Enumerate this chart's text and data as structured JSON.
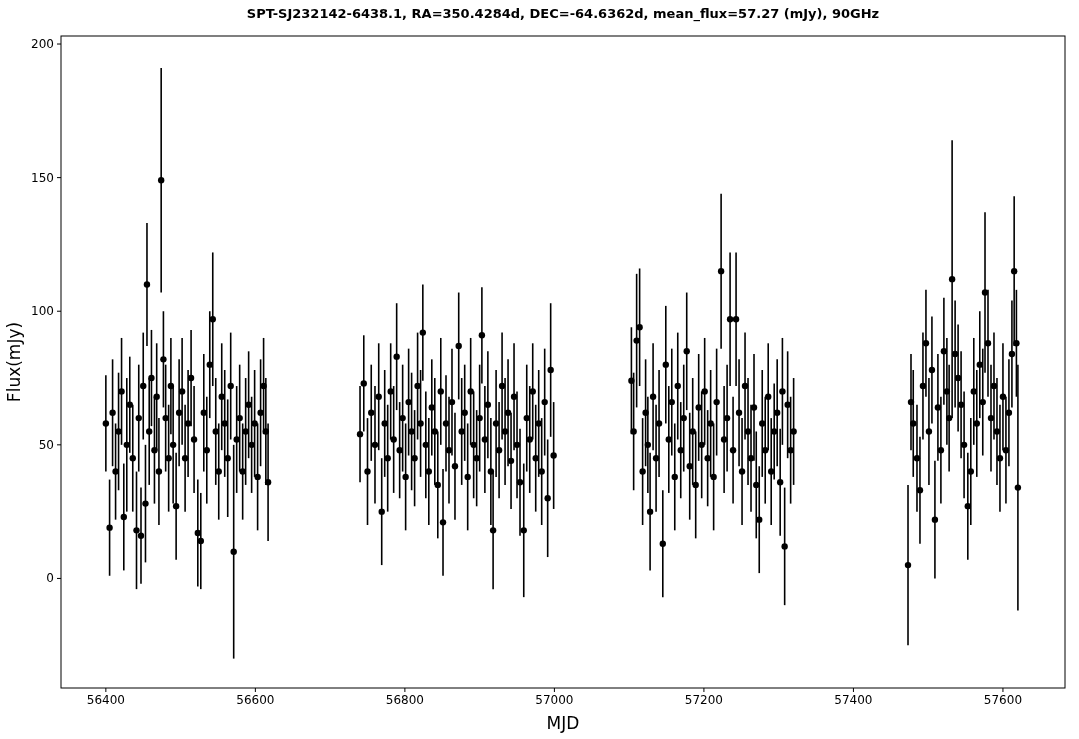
{
  "chart_data": {
    "type": "scatter",
    "title": "SPT-SJ232142-6438.1, RA=350.4284d, DEC=-64.6362d, mean_flux=57.27 (mJy), 90GHz",
    "xlabel": "MJD",
    "ylabel": "Flux(mJy)",
    "color": "#000000",
    "marker": "circle",
    "grid": false,
    "xlim": [
      56340,
      57683
    ],
    "ylim": [
      -41,
      203
    ],
    "xticks": [
      56400,
      56600,
      56800,
      57000,
      57200,
      57400,
      57600
    ],
    "yticks": [
      0,
      50,
      100,
      150,
      200
    ],
    "x": [
      56400,
      56405,
      56409,
      56413,
      56417,
      56421,
      56424,
      56428,
      56432,
      56436,
      56441,
      56444,
      56447,
      56450,
      56453,
      56455,
      56458,
      56461,
      56465,
      56468,
      56471,
      56474,
      56477,
      56480,
      56484,
      56487,
      56490,
      56494,
      56498,
      56502,
      56506,
      56510,
      56514,
      56518,
      56523,
      56527,
      56531,
      56535,
      56539,
      56543,
      56547,
      56551,
      56555,
      56559,
      56563,
      56567,
      56571,
      56575,
      56579,
      56583,
      56587,
      56591,
      56595,
      56599,
      56603,
      56607,
      56611,
      56614,
      56617,
      56740,
      56745,
      56750,
      56755,
      56760,
      56765,
      56769,
      56773,
      56777,
      56781,
      56785,
      56789,
      56793,
      56797,
      56801,
      56805,
      56809,
      56813,
      56817,
      56821,
      56824,
      56828,
      56832,
      56836,
      56840,
      56844,
      56848,
      56851,
      56855,
      56859,
      56863,
      56867,
      56872,
      56876,
      56880,
      56884,
      56888,
      56892,
      56896,
      56900,
      56903,
      56907,
      56911,
      56915,
      56918,
      56922,
      56926,
      56930,
      56934,
      56938,
      56942,
      56946,
      56950,
      56954,
      56959,
      56963,
      56967,
      56971,
      56975,
      56979,
      56983,
      56987,
      56991,
      56995,
      56999,
      57103,
      57106,
      57110,
      57114,
      57118,
      57122,
      57125,
      57128,
      57132,
      57136,
      57140,
      57145,
      57149,
      57153,
      57157,
      57161,
      57165,
      57169,
      57173,
      57177,
      57181,
      57185,
      57189,
      57193,
      57197,
      57201,
      57205,
      57209,
      57213,
      57217,
      57223,
      57227,
      57231,
      57235,
      57239,
      57243,
      57247,
      57251,
      57255,
      57259,
      57263,
      57267,
      57270,
      57274,
      57278,
      57282,
      57286,
      57290,
      57294,
      57298,
      57302,
      57305,
      57308,
      57312,
      57316,
      57320,
      57473,
      57477,
      57480,
      57485,
      57489,
      57493,
      57497,
      57501,
      57505,
      57509,
      57513,
      57517,
      57521,
      57525,
      57528,
      57532,
      57536,
      57540,
      57544,
      57548,
      57553,
      57557,
      57561,
      57565,
      57569,
      57573,
      57576,
      57580,
      57584,
      57588,
      57592,
      57596,
      57600,
      57604,
      57608,
      57612,
      57615,
      57618,
      57620
    ],
    "values": [
      58,
      19,
      62,
      40,
      55,
      70,
      23,
      50,
      65,
      45,
      18,
      60,
      16,
      72,
      28,
      110,
      55,
      75,
      48,
      68,
      40,
      149,
      82,
      60,
      45,
      72,
      50,
      27,
      62,
      70,
      45,
      58,
      75,
      52,
      17,
      14,
      62,
      48,
      80,
      97,
      55,
      40,
      68,
      58,
      45,
      72,
      10,
      52,
      60,
      40,
      55,
      65,
      50,
      58,
      38,
      62,
      72,
      55,
      36,
      54,
      73,
      40,
      62,
      50,
      68,
      25,
      58,
      45,
      70,
      52,
      83,
      48,
      60,
      38,
      66,
      55,
      45,
      72,
      58,
      92,
      50,
      40,
      64,
      55,
      35,
      70,
      21,
      58,
      48,
      66,
      42,
      87,
      55,
      62,
      38,
      70,
      50,
      45,
      60,
      91,
      52,
      65,
      40,
      18,
      58,
      48,
      72,
      55,
      62,
      44,
      68,
      50,
      36,
      18,
      60,
      52,
      70,
      45,
      58,
      40,
      66,
      30,
      78,
      46,
      74,
      55,
      89,
      94,
      40,
      62,
      50,
      25,
      68,
      45,
      58,
      13,
      80,
      52,
      66,
      38,
      72,
      48,
      60,
      85,
      42,
      55,
      35,
      64,
      50,
      70,
      45,
      58,
      38,
      66,
      115,
      52,
      60,
      97,
      48,
      97,
      62,
      40,
      72,
      55,
      45,
      64,
      35,
      22,
      58,
      48,
      68,
      40,
      55,
      62,
      36,
      70,
      12,
      65,
      48,
      55,
      5,
      66,
      58,
      45,
      33,
      72,
      88,
      55,
      78,
      22,
      64,
      48,
      85,
      70,
      60,
      112,
      84,
      75,
      65,
      50,
      27,
      40,
      70,
      58,
      80,
      66,
      107,
      88,
      60,
      72,
      55,
      45,
      68,
      48,
      62,
      84,
      115,
      88,
      34
    ],
    "errors": [
      18,
      18,
      20,
      18,
      22,
      20,
      20,
      25,
      18,
      20,
      22,
      20,
      18,
      20,
      22,
      23,
      20,
      18,
      20,
      20,
      20,
      42,
      18,
      20,
      20,
      18,
      22,
      20,
      20,
      20,
      20,
      20,
      18,
      20,
      20,
      18,
      22,
      20,
      20,
      25,
      20,
      18,
      20,
      20,
      22,
      20,
      40,
      20,
      20,
      18,
      20,
      20,
      18,
      20,
      20,
      20,
      18,
      20,
      22,
      18,
      18,
      20,
      18,
      22,
      20,
      20,
      20,
      20,
      18,
      20,
      20,
      18,
      20,
      20,
      20,
      22,
      18,
      20,
      20,
      18,
      20,
      20,
      18,
      20,
      20,
      20,
      20,
      18,
      20,
      20,
      20,
      20,
      20,
      18,
      20,
      20,
      20,
      18,
      20,
      18,
      20,
      20,
      20,
      22,
      20,
      18,
      20,
      20,
      20,
      18,
      20,
      20,
      20,
      25,
      20,
      20,
      18,
      20,
      20,
      20,
      20,
      22,
      25,
      20,
      20,
      22,
      25,
      22,
      20,
      20,
      18,
      22,
      20,
      20,
      20,
      20,
      22,
      20,
      20,
      20,
      20,
      18,
      20,
      22,
      20,
      20,
      20,
      20,
      20,
      20,
      18,
      20,
      20,
      20,
      29,
      20,
      20,
      25,
      20,
      25,
      20,
      20,
      20,
      20,
      20,
      20,
      20,
      20,
      20,
      20,
      20,
      20,
      18,
      20,
      20,
      20,
      22,
      20,
      20,
      20,
      30,
      18,
      20,
      20,
      20,
      20,
      20,
      20,
      20,
      22,
      20,
      20,
      20,
      20,
      20,
      52,
      20,
      20,
      20,
      20,
      20,
      20,
      20,
      20,
      20,
      20,
      30,
      20,
      20,
      20,
      20,
      20,
      20,
      20,
      20,
      20,
      28,
      20,
      46
    ]
  }
}
